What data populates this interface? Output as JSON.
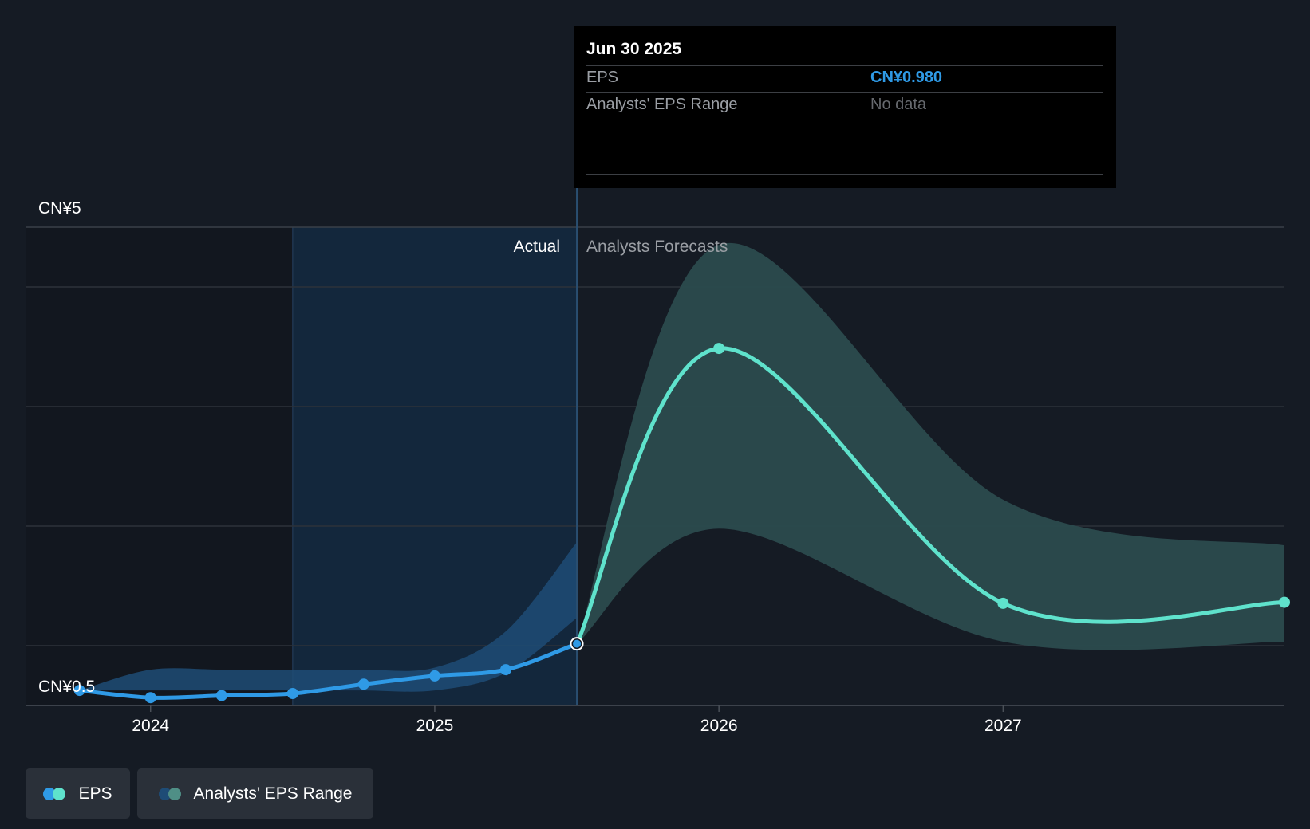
{
  "colors": {
    "background": "#151b24",
    "eps_actual": "#2f9ae6",
    "eps_forecast": "#5fe2cc",
    "range_actual": "#1e4c76",
    "range_forecast": "#2b4b4e",
    "actual_shade": "#13273c"
  },
  "tooltip": {
    "date": "Jun 30 2025",
    "rows": [
      {
        "label": "EPS",
        "value": "CN¥0.980",
        "color": "#2f9ae6"
      },
      {
        "label": "Analysts' EPS Range",
        "value": "No data",
        "color": "#66696e"
      }
    ]
  },
  "legend": [
    {
      "label": "EPS",
      "icon": "eps-legend-icon"
    },
    {
      "label": "Analysts' EPS Range",
      "icon": "range-legend-icon"
    }
  ],
  "chart_data": {
    "type": "line",
    "y_top_label": "CN¥5",
    "y_bottom_label": "CN¥0.5",
    "ylim": [
      0.5,
      5
    ],
    "grid": true,
    "region_labels": {
      "actual": "Actual",
      "forecast": "Analysts Forecasts"
    },
    "x_ticks": [
      {
        "label": "2024",
        "x": 2024.0
      },
      {
        "label": "2025",
        "x": 2025.0
      },
      {
        "label": "2026",
        "x": 2026.0
      },
      {
        "label": "2027",
        "x": 2027.0
      }
    ],
    "xlim": [
      2023.56,
      2027.99
    ],
    "highlight_x": 2025.5,
    "shade_start_x": 2024.5,
    "series": [
      {
        "name": "EPS",
        "kind": "actual",
        "points": [
          {
            "x": 2023.75,
            "y": 0.53
          },
          {
            "x": 2024.0,
            "y": 0.46
          },
          {
            "x": 2024.25,
            "y": 0.48
          },
          {
            "x": 2024.5,
            "y": 0.5
          },
          {
            "x": 2024.75,
            "y": 0.59
          },
          {
            "x": 2025.0,
            "y": 0.67
          },
          {
            "x": 2025.25,
            "y": 0.73
          },
          {
            "x": 2025.5,
            "y": 0.98
          }
        ]
      },
      {
        "name": "EPS Forecast",
        "kind": "forecast",
        "points": [
          {
            "x": 2025.5,
            "y": 0.98
          },
          {
            "x": 2026.0,
            "y": 3.83
          },
          {
            "x": 2027.0,
            "y": 1.37
          },
          {
            "x": 2027.99,
            "y": 1.38
          }
        ]
      }
    ],
    "range_actual": {
      "x": [
        2023.75,
        2024.0,
        2024.25,
        2024.5,
        2024.75,
        2025.0,
        2025.25,
        2025.5
      ],
      "low": [
        0.53,
        0.53,
        0.53,
        0.53,
        0.53,
        0.53,
        0.7,
        1.23
      ],
      "high": [
        0.53,
        0.73,
        0.73,
        0.73,
        0.73,
        0.75,
        1.1,
        1.96
      ]
    },
    "range_forecast": {
      "x": [
        2025.5,
        2026.0,
        2027.0,
        2027.99
      ],
      "low": [
        0.98,
        2.09,
        1.0,
        1.0
      ],
      "high": [
        0.98,
        4.83,
        2.37,
        1.93
      ]
    }
  }
}
